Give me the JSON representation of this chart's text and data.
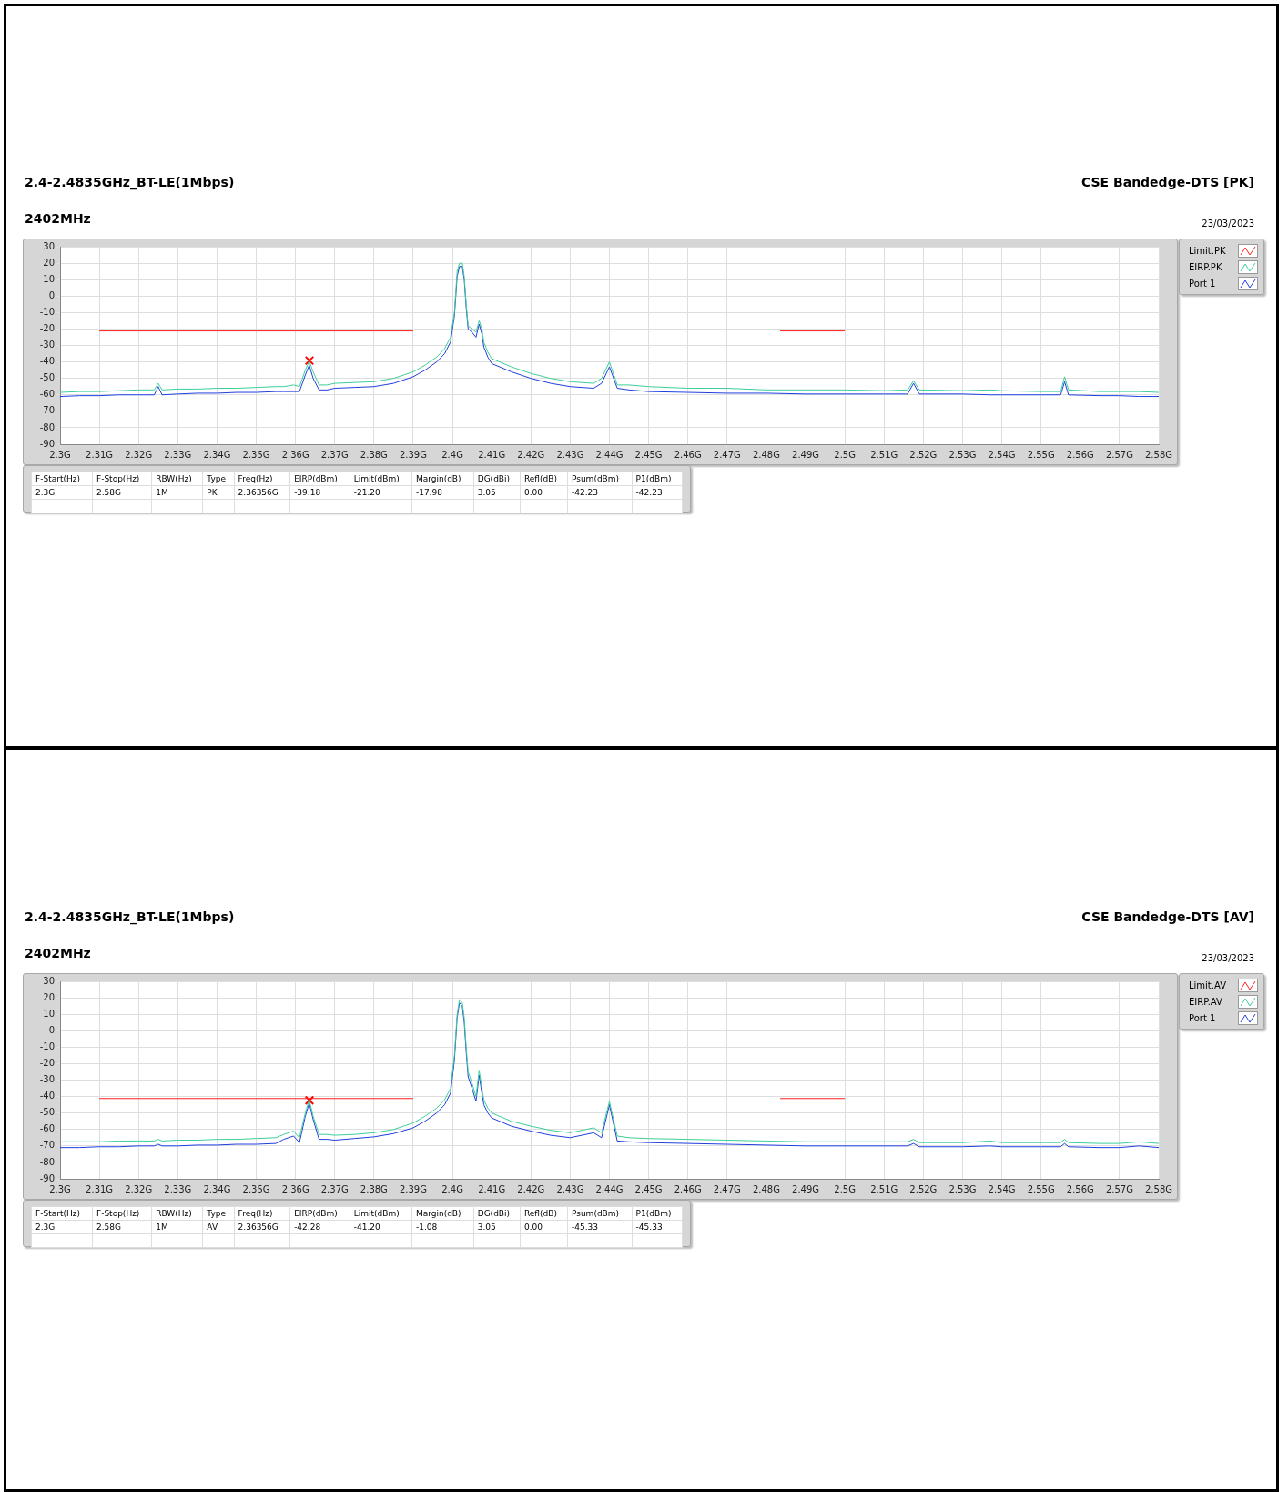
{
  "chart_data": [
    {
      "type": "line",
      "title": "2.4-2.4835GHz_BT-LE(1Mbps)",
      "subtitle": "2402MHz",
      "annotations": [
        "CSE Bandedge-DTS [PK]",
        "23/03/2023",
        "F-Start(Hz)",
        "F-Stop(Hz)",
        "RBW(Hz)",
        "Type",
        "Freq(Hz)",
        "EIRP(dBm)",
        "Limit(dBm)",
        "Margin(dB)",
        "DG(dBi)",
        "Refl(dB)",
        "Psum(dBm)",
        "P1(dBm)",
        "2.3G",
        "2.58G",
        "1M",
        "PK",
        "2.36356G",
        "-39.18",
        "-21.20",
        "-17.98",
        "3.05",
        "0.00",
        "-42.23",
        "-42.23"
      ],
      "x": [
        2.3,
        2.305,
        2.31,
        2.315,
        2.32,
        2.324,
        2.325,
        2.326,
        2.33,
        2.335,
        2.34,
        2.345,
        2.35,
        2.355,
        2.357,
        2.3595,
        2.361,
        2.3625,
        2.3635,
        2.3645,
        2.366,
        2.368,
        2.37,
        2.375,
        2.38,
        2.385,
        2.39,
        2.393,
        2.396,
        2.398,
        2.3995,
        2.4005,
        2.4012,
        2.4018,
        2.4025,
        2.403,
        2.4035,
        2.404,
        2.405,
        2.406,
        2.4068,
        2.4075,
        2.408,
        2.409,
        2.41,
        2.415,
        2.42,
        2.425,
        2.43,
        2.436,
        2.438,
        2.44,
        2.442,
        2.445,
        2.45,
        2.46,
        2.47,
        2.48,
        2.49,
        2.5,
        2.51,
        2.516,
        2.5175,
        2.519,
        2.53,
        2.537,
        2.54,
        2.55,
        2.555,
        2.556,
        2.557,
        2.565,
        2.57,
        2.575,
        2.58
      ],
      "xlim": [
        2.3,
        2.58
      ],
      "xticks": [
        {
          "value": 2.3,
          "label": "2.3G"
        },
        {
          "value": 2.31,
          "label": "2.31G"
        },
        {
          "value": 2.32,
          "label": "2.32G"
        },
        {
          "value": 2.33,
          "label": "2.33G"
        },
        {
          "value": 2.34,
          "label": "2.34G"
        },
        {
          "value": 2.35,
          "label": "2.35G"
        },
        {
          "value": 2.36,
          "label": "2.36G"
        },
        {
          "value": 2.37,
          "label": "2.37G"
        },
        {
          "value": 2.38,
          "label": "2.38G"
        },
        {
          "value": 2.39,
          "label": "2.39G"
        },
        {
          "value": 2.4,
          "label": "2.4G"
        },
        {
          "value": 2.41,
          "label": "2.41G"
        },
        {
          "value": 2.42,
          "label": "2.42G"
        },
        {
          "value": 2.43,
          "label": "2.43G"
        },
        {
          "value": 2.44,
          "label": "2.44G"
        },
        {
          "value": 2.45,
          "label": "2.45G"
        },
        {
          "value": 2.46,
          "label": "2.46G"
        },
        {
          "value": 2.47,
          "label": "2.47G"
        },
        {
          "value": 2.48,
          "label": "2.48G"
        },
        {
          "value": 2.49,
          "label": "2.49G"
        },
        {
          "value": 2.5,
          "label": "2.5G"
        },
        {
          "value": 2.51,
          "label": "2.51G"
        },
        {
          "value": 2.52,
          "label": "2.52G"
        },
        {
          "value": 2.53,
          "label": "2.53G"
        },
        {
          "value": 2.54,
          "label": "2.54G"
        },
        {
          "value": 2.55,
          "label": "2.55G"
        },
        {
          "value": 2.56,
          "label": "2.56G"
        },
        {
          "value": 2.57,
          "label": "2.57G"
        },
        {
          "value": 2.58,
          "label": "2.58G"
        }
      ],
      "ylim": [
        -90,
        30
      ],
      "yticks": [
        30,
        20,
        10,
        0,
        -10,
        -20,
        -30,
        -40,
        -50,
        -60,
        -70,
        -80,
        -90
      ],
      "grid": true,
      "legend": "top right",
      "marker": "none",
      "series": [
        {
          "name": "Limit.PK",
          "color": "#ff2020",
          "x": [
            2.31,
            2.39,
            2.44,
            2.4835,
            2.5
          ],
          "values": [
            -21.2,
            -21.2,
            null,
            -21.2,
            -21.2
          ]
        },
        {
          "name": "EIRP.PK",
          "color": "#3dcf98",
          "values": [
            -58.5,
            -58,
            -58,
            -57.5,
            -57,
            -57,
            -53,
            -57,
            -56.5,
            -56.5,
            -56,
            -56,
            -55.5,
            -55,
            -55,
            -54,
            -55,
            -45,
            -39.5,
            -46,
            -54,
            -54,
            -53,
            -52.5,
            -52,
            -50,
            -46,
            -42,
            -37,
            -32,
            -25,
            -10,
            15,
            20,
            20,
            12,
            -5,
            -18,
            -20,
            -22,
            -15,
            -20,
            -28,
            -34,
            -38,
            -43,
            -47,
            -50,
            -52,
            -53,
            -50,
            -40,
            -54,
            -54,
            -55,
            -56,
            -56,
            -57,
            -57,
            -57,
            -57.5,
            -57,
            -51.5,
            -57,
            -57.5,
            -57,
            -57.5,
            -58,
            -58,
            -49,
            -57,
            -58,
            -58,
            -58,
            -58.5
          ]
        },
        {
          "name": "Port 1",
          "color": "#1f3fe0",
          "values": [
            -61,
            -60.5,
            -60.5,
            -60,
            -60,
            -60,
            -55,
            -60,
            -59.5,
            -59,
            -59,
            -58.5,
            -58.5,
            -58,
            -58,
            -58,
            -58,
            -48,
            -42,
            -50,
            -57,
            -57,
            -56,
            -55.5,
            -55,
            -53,
            -49,
            -45,
            -40,
            -35,
            -28,
            -12,
            12,
            18,
            18,
            10,
            -7,
            -20,
            -22,
            -25,
            -17,
            -23,
            -31,
            -37,
            -41,
            -46,
            -50,
            -53,
            -55,
            -56,
            -53,
            -43,
            -56,
            -57,
            -58,
            -58.5,
            -59,
            -59,
            -59.5,
            -59.5,
            -59.5,
            -59.5,
            -53,
            -59.5,
            -59.5,
            -60,
            -60,
            -60,
            -60,
            -52,
            -60,
            -60.5,
            -60.5,
            -61,
            -61
          ]
        },
        {
          "type": "scatter",
          "color": "#ff0000",
          "marker": "cross",
          "x": [
            2.36356
          ],
          "values": [
            -39.18
          ]
        }
      ]
    },
    {
      "type": "line",
      "title": "2.4-2.4835GHz_BT-LE(1Mbps)",
      "subtitle": "2402MHz",
      "annotations": [
        "CSE Bandedge-DTS [AV]",
        "23/03/2023",
        "F-Start(Hz)",
        "F-Stop(Hz)",
        "RBW(Hz)",
        "Type",
        "Freq(Hz)",
        "EIRP(dBm)",
        "Limit(dBm)",
        "Margin(dB)",
        "DG(dBi)",
        "Refl(dB)",
        "Psum(dBm)",
        "P1(dBm)",
        "2.3G",
        "2.58G",
        "1M",
        "AV",
        "2.36356G",
        "-42.28",
        "-41.20",
        "-1.08",
        "3.05",
        "0.00",
        "-45.33",
        "-45.33"
      ],
      "x": [
        2.3,
        2.305,
        2.31,
        2.315,
        2.32,
        2.324,
        2.325,
        2.326,
        2.33,
        2.335,
        2.34,
        2.345,
        2.35,
        2.355,
        2.357,
        2.3595,
        2.361,
        2.3625,
        2.3635,
        2.3645,
        2.366,
        2.368,
        2.37,
        2.375,
        2.38,
        2.385,
        2.39,
        2.393,
        2.396,
        2.398,
        2.3995,
        2.4005,
        2.4012,
        2.4018,
        2.4025,
        2.403,
        2.4035,
        2.404,
        2.405,
        2.406,
        2.4068,
        2.4075,
        2.408,
        2.409,
        2.41,
        2.415,
        2.42,
        2.425,
        2.43,
        2.436,
        2.438,
        2.44,
        2.442,
        2.445,
        2.45,
        2.46,
        2.47,
        2.48,
        2.49,
        2.5,
        2.51,
        2.516,
        2.5175,
        2.519,
        2.53,
        2.537,
        2.54,
        2.55,
        2.555,
        2.556,
        2.557,
        2.565,
        2.57,
        2.575,
        2.58
      ],
      "xlim": [
        2.3,
        2.58
      ],
      "xticks": [
        {
          "value": 2.3,
          "label": "2.3G"
        },
        {
          "value": 2.31,
          "label": "2.31G"
        },
        {
          "value": 2.32,
          "label": "2.32G"
        },
        {
          "value": 2.33,
          "label": "2.33G"
        },
        {
          "value": 2.34,
          "label": "2.34G"
        },
        {
          "value": 2.35,
          "label": "2.35G"
        },
        {
          "value": 2.36,
          "label": "2.36G"
        },
        {
          "value": 2.37,
          "label": "2.37G"
        },
        {
          "value": 2.38,
          "label": "2.38G"
        },
        {
          "value": 2.39,
          "label": "2.39G"
        },
        {
          "value": 2.4,
          "label": "2.4G"
        },
        {
          "value": 2.41,
          "label": "2.41G"
        },
        {
          "value": 2.42,
          "label": "2.42G"
        },
        {
          "value": 2.43,
          "label": "2.43G"
        },
        {
          "value": 2.44,
          "label": "2.44G"
        },
        {
          "value": 2.45,
          "label": "2.45G"
        },
        {
          "value": 2.46,
          "label": "2.46G"
        },
        {
          "value": 2.47,
          "label": "2.47G"
        },
        {
          "value": 2.48,
          "label": "2.48G"
        },
        {
          "value": 2.49,
          "label": "2.49G"
        },
        {
          "value": 2.5,
          "label": "2.5G"
        },
        {
          "value": 2.51,
          "label": "2.51G"
        },
        {
          "value": 2.52,
          "label": "2.52G"
        },
        {
          "value": 2.53,
          "label": "2.53G"
        },
        {
          "value": 2.54,
          "label": "2.54G"
        },
        {
          "value": 2.55,
          "label": "2.55G"
        },
        {
          "value": 2.56,
          "label": "2.56G"
        },
        {
          "value": 2.57,
          "label": "2.57G"
        },
        {
          "value": 2.58,
          "label": "2.58G"
        }
      ],
      "ylim": [
        -90,
        30
      ],
      "yticks": [
        30,
        20,
        10,
        0,
        -10,
        -20,
        -30,
        -40,
        -50,
        -60,
        -70,
        -80,
        -90
      ],
      "grid": true,
      "legend": "top right",
      "marker": "none",
      "series": [
        {
          "name": "Limit.AV",
          "color": "#ff2020",
          "x": [
            2.31,
            2.39,
            2.44,
            2.4835,
            2.5
          ],
          "values": [
            -41.2,
            -41.2,
            null,
            -41.2,
            -41.2
          ]
        },
        {
          "name": "EIRP.AV",
          "color": "#3dcf98",
          "values": [
            -67.5,
            -67.5,
            -67.5,
            -67,
            -67,
            -67,
            -66,
            -67,
            -66.5,
            -66.5,
            -66,
            -66,
            -65.5,
            -65,
            -63,
            -61,
            -65,
            -50,
            -42,
            -52,
            -63,
            -63,
            -63.5,
            -63,
            -62,
            -60,
            -56,
            -52,
            -47,
            -42,
            -35,
            -15,
            10,
            19,
            17,
            8,
            -10,
            -25,
            -32,
            -40,
            -24,
            -35,
            -42,
            -47,
            -50,
            -55,
            -58,
            -60.5,
            -62,
            -59,
            -62,
            -43,
            -64,
            -65,
            -65.5,
            -66,
            -66.5,
            -67,
            -67.5,
            -67.5,
            -67.5,
            -67.5,
            -66,
            -68,
            -68,
            -67,
            -68,
            -68,
            -68,
            -66,
            -68,
            -68.5,
            -68.5,
            -67.5,
            -68.5
          ]
        },
        {
          "name": "Port 1",
          "color": "#1f3fe0",
          "values": [
            -71,
            -71,
            -70.5,
            -70.5,
            -70,
            -70,
            -69,
            -70,
            -70,
            -69.5,
            -69.5,
            -69,
            -69,
            -68.5,
            -66,
            -64,
            -68,
            -52,
            -44,
            -54,
            -66,
            -66,
            -66.5,
            -65.5,
            -64.5,
            -62.5,
            -59,
            -55,
            -50,
            -45,
            -38,
            -18,
            8,
            17,
            15,
            5,
            -13,
            -28,
            -35,
            -43,
            -27,
            -38,
            -45,
            -50,
            -53,
            -58,
            -61,
            -63.5,
            -65,
            -62,
            -65,
            -45,
            -67,
            -67.5,
            -68,
            -68.5,
            -69,
            -69.5,
            -70,
            -70,
            -70,
            -70,
            -68.5,
            -70.5,
            -70.5,
            -70,
            -70.5,
            -70.5,
            -70.5,
            -68.5,
            -70.5,
            -71,
            -71,
            -70,
            -71
          ]
        },
        {
          "type": "scatter",
          "color": "#ff0000",
          "marker": "cross",
          "x": [
            2.36356
          ],
          "values": [
            -42.28
          ]
        }
      ]
    }
  ]
}
